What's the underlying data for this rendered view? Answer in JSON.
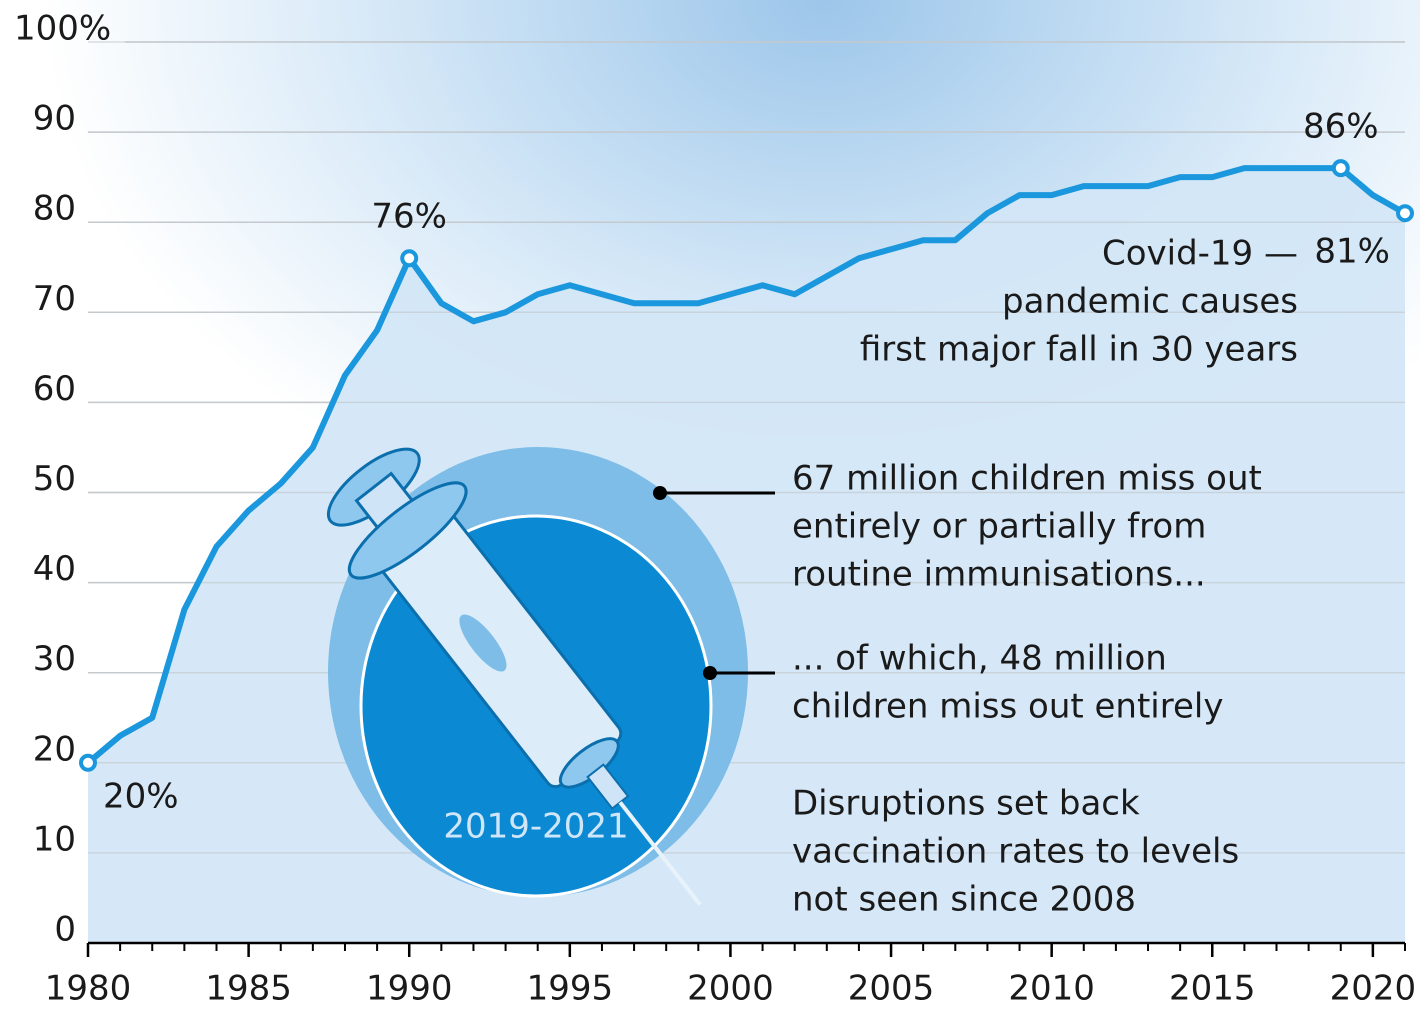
{
  "chart_data": {
    "type": "line",
    "x": [
      1980,
      1981,
      1982,
      1983,
      1984,
      1985,
      1986,
      1987,
      1988,
      1989,
      1990,
      1991,
      1992,
      1993,
      1994,
      1995,
      1996,
      1997,
      1998,
      1999,
      2000,
      2001,
      2002,
      2003,
      2004,
      2005,
      2006,
      2007,
      2008,
      2009,
      2010,
      2011,
      2012,
      2013,
      2014,
      2015,
      2016,
      2017,
      2018,
      2019,
      2020,
      2021
    ],
    "values": [
      20,
      23,
      25,
      37,
      44,
      48,
      51,
      55,
      63,
      68,
      76,
      71,
      69,
      70,
      72,
      73,
      72,
      71,
      71,
      71,
      72,
      73,
      72,
      74,
      76,
      77,
      78,
      78,
      81,
      83,
      83,
      84,
      84,
      84,
      85,
      85,
      86,
      86,
      86,
      86,
      83,
      81
    ],
    "color": "#1b97dd",
    "xlim": [
      1980,
      2021
    ],
    "xticks": [
      1980,
      1985,
      1990,
      1995,
      2000,
      2005,
      2010,
      2015,
      2020
    ],
    "ylim": [
      0,
      100
    ],
    "yticks": [
      0,
      10,
      20,
      30,
      40,
      50,
      60,
      70,
      80,
      90,
      {
        "value": 100,
        "label": "100%"
      }
    ],
    "grid": true,
    "point_labels": [
      {
        "x": 1980,
        "value": 20,
        "label": "20%"
      },
      {
        "x": 1990,
        "value": 76,
        "label": "76%"
      },
      {
        "x": 2019,
        "value": 86,
        "label": "86%"
      },
      {
        "x": 2021,
        "value": 81,
        "label": "81%"
      }
    ],
    "annotations": {
      "covid": [
        "Covid-19 —",
        "pandemic causes",
        "first major fall in 30 years"
      ],
      "missed": [
        "67 million children miss out",
        "entirely or partially from",
        "routine immunisations..."
      ],
      "missed_entirely": [
        "... of which, 48 million",
        "children miss out entirely"
      ],
      "setback": [
        "Disruptions set back",
        "vaccination rates to levels",
        "not seen since 2008"
      ],
      "period": "2019-2021"
    }
  }
}
